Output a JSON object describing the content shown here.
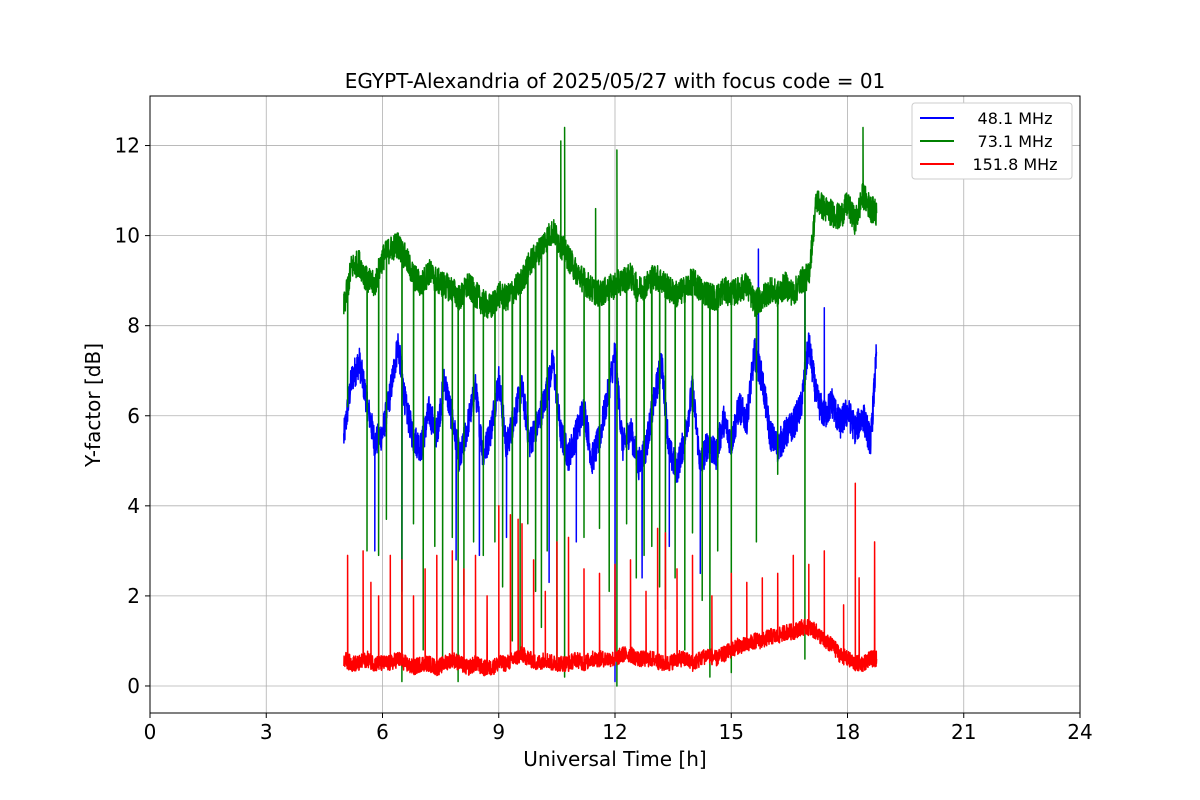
{
  "chart_data": {
    "type": "line",
    "title": "EGYPT-Alexandria of 2025/05/27 with focus code = 01",
    "xlabel": "Universal Time [h]",
    "ylabel": "Y-factor [dB]",
    "xlim": [
      0,
      24
    ],
    "ylim": [
      -0.6,
      13.1
    ],
    "xticks": [
      0,
      3,
      6,
      9,
      12,
      15,
      18,
      21,
      24
    ],
    "yticks": [
      0,
      2,
      4,
      6,
      8,
      10,
      12
    ],
    "grid": true,
    "legend_position": "top-right",
    "series": [
      {
        "name": "48.1 MHz",
        "color": "#0000ff",
        "x": [
          5.0,
          5.2,
          5.4,
          5.6,
          5.8,
          6.0,
          6.2,
          6.4,
          6.6,
          6.8,
          7.0,
          7.2,
          7.4,
          7.6,
          7.8,
          8.0,
          8.2,
          8.4,
          8.6,
          8.8,
          9.0,
          9.2,
          9.4,
          9.6,
          9.8,
          10.0,
          10.2,
          10.4,
          10.6,
          10.8,
          11.0,
          11.2,
          11.4,
          11.6,
          11.8,
          12.0,
          12.2,
          12.4,
          12.6,
          12.8,
          13.0,
          13.2,
          13.4,
          13.6,
          13.8,
          14.0,
          14.2,
          14.4,
          14.6,
          14.8,
          15.0,
          15.2,
          15.4,
          15.6,
          15.8,
          16.0,
          16.2,
          16.4,
          16.6,
          16.8,
          17.0,
          17.2,
          17.4,
          17.6,
          17.8,
          18.0,
          18.2,
          18.4,
          18.6,
          18.75
        ],
        "y": [
          5.5,
          6.8,
          7.2,
          6.3,
          5.4,
          5.6,
          6.5,
          7.6,
          6.2,
          5.5,
          5.3,
          6.1,
          5.6,
          6.8,
          5.9,
          5.0,
          5.8,
          6.6,
          5.1,
          5.7,
          6.8,
          5.3,
          6.0,
          6.6,
          5.4,
          5.8,
          6.4,
          7.2,
          5.6,
          5.1,
          5.6,
          6.2,
          5.0,
          5.5,
          6.4,
          7.4,
          5.3,
          5.7,
          4.9,
          5.3,
          6.3,
          7.2,
          5.2,
          4.8,
          5.5,
          6.6,
          4.9,
          5.4,
          5.1,
          5.9,
          5.4,
          6.2,
          5.9,
          7.4,
          6.8,
          5.6,
          5.3,
          5.6,
          5.8,
          6.2,
          7.6,
          6.4,
          6.0,
          6.3,
          5.8,
          6.1,
          5.7,
          6.0,
          5.4,
          7.4
        ]
      },
      {
        "name": "73.1 MHz",
        "color": "#008000",
        "x": [
          5.0,
          5.2,
          5.4,
          5.6,
          5.8,
          6.0,
          6.2,
          6.4,
          6.6,
          6.8,
          7.0,
          7.2,
          7.4,
          7.6,
          7.8,
          8.0,
          8.2,
          8.4,
          8.6,
          8.8,
          9.0,
          9.2,
          9.4,
          9.6,
          9.8,
          10.0,
          10.2,
          10.4,
          10.6,
          10.8,
          11.0,
          11.2,
          11.4,
          11.6,
          11.8,
          12.0,
          12.2,
          12.4,
          12.6,
          12.8,
          13.0,
          13.2,
          13.4,
          13.6,
          13.8,
          14.0,
          14.2,
          14.4,
          14.6,
          14.8,
          15.0,
          15.2,
          15.4,
          15.6,
          15.8,
          16.0,
          16.2,
          16.4,
          16.6,
          16.8,
          17.0,
          17.2,
          17.4,
          17.6,
          17.8,
          18.0,
          18.2,
          18.4,
          18.6,
          18.75
        ],
        "y": [
          8.4,
          9.3,
          9.4,
          9.0,
          8.9,
          9.5,
          9.7,
          9.8,
          9.5,
          9.1,
          8.9,
          9.2,
          9.0,
          8.9,
          8.8,
          8.6,
          8.9,
          8.7,
          8.5,
          8.4,
          8.7,
          8.6,
          8.8,
          9.0,
          9.4,
          9.6,
          9.9,
          10.1,
          9.8,
          9.5,
          9.2,
          9.0,
          8.8,
          8.7,
          8.8,
          8.9,
          9.0,
          9.1,
          8.8,
          8.9,
          9.1,
          9.0,
          8.8,
          8.7,
          8.8,
          9.0,
          8.8,
          8.7,
          8.6,
          8.8,
          8.7,
          8.8,
          8.9,
          8.5,
          8.6,
          8.8,
          8.7,
          8.9,
          8.7,
          9.0,
          9.1,
          10.8,
          10.6,
          10.5,
          10.4,
          10.7,
          10.3,
          10.9,
          10.6,
          10.5
        ]
      },
      {
        "name": "151.8 MHz",
        "color": "#ff0000",
        "x": [
          5.0,
          5.2,
          5.4,
          5.6,
          5.8,
          6.0,
          6.2,
          6.4,
          6.6,
          6.8,
          7.0,
          7.2,
          7.4,
          7.6,
          7.8,
          8.0,
          8.2,
          8.4,
          8.6,
          8.8,
          9.0,
          9.2,
          9.4,
          9.6,
          9.8,
          10.0,
          10.2,
          10.4,
          10.6,
          10.8,
          11.0,
          11.2,
          11.4,
          11.6,
          11.8,
          12.0,
          12.2,
          12.4,
          12.6,
          12.8,
          13.0,
          13.2,
          13.4,
          13.6,
          13.8,
          14.0,
          14.2,
          14.4,
          14.6,
          14.8,
          15.0,
          15.2,
          15.4,
          15.6,
          15.8,
          16.0,
          16.2,
          16.4,
          16.6,
          16.8,
          17.0,
          17.2,
          17.4,
          17.6,
          17.8,
          18.0,
          18.2,
          18.4,
          18.6,
          18.75
        ],
        "y": [
          0.6,
          0.5,
          0.5,
          0.6,
          0.5,
          0.5,
          0.5,
          0.6,
          0.5,
          0.4,
          0.5,
          0.5,
          0.4,
          0.5,
          0.6,
          0.5,
          0.4,
          0.5,
          0.4,
          0.4,
          0.5,
          0.5,
          0.6,
          0.7,
          0.6,
          0.5,
          0.6,
          0.5,
          0.5,
          0.5,
          0.6,
          0.5,
          0.6,
          0.6,
          0.6,
          0.6,
          0.7,
          0.7,
          0.6,
          0.6,
          0.6,
          0.5,
          0.5,
          0.6,
          0.6,
          0.5,
          0.6,
          0.7,
          0.6,
          0.7,
          0.8,
          0.9,
          0.9,
          1.0,
          1.0,
          1.1,
          1.1,
          1.2,
          1.2,
          1.3,
          1.3,
          1.2,
          1.0,
          0.9,
          0.7,
          0.6,
          0.5,
          0.5,
          0.6,
          0.6
        ]
      }
    ],
    "drops": [
      {
        "series": 1,
        "x": [
          5.1,
          5.3,
          5.6,
          5.9,
          6.1,
          6.3,
          6.5,
          6.8,
          7.05,
          7.35,
          7.55,
          7.8,
          7.95,
          8.1,
          8.35,
          8.6,
          8.9,
          9.1,
          9.35,
          9.55,
          9.75,
          9.95,
          10.1,
          10.25,
          10.5,
          10.7,
          11.2,
          11.6,
          11.85,
          12.05,
          12.3,
          12.55,
          12.75,
          12.95,
          13.15,
          13.3,
          13.55,
          13.8,
          14.0,
          14.25,
          14.45,
          14.65,
          15.0,
          15.65,
          16.2,
          16.9
        ],
        "y": [
          6.2,
          4.8,
          3.0,
          2.9,
          3.7,
          2.7,
          0.1,
          3.6,
          0.8,
          3.1,
          0.6,
          3.3,
          0.1,
          2.0,
          3.2,
          2.9,
          3.2,
          2.2,
          1.0,
          0.7,
          3.6,
          2.1,
          1.3,
          3.0,
          0.4,
          0.2,
          3.3,
          3.5,
          2.1,
          0.0,
          3.6,
          2.4,
          2.9,
          3.1,
          2.2,
          1.7,
          2.4,
          0.8,
          3.4,
          1.9,
          0.2,
          3.0,
          0.3,
          3.2,
          4.7,
          0.6
        ]
      },
      {
        "series": 0,
        "x": [
          5.8,
          6.5,
          7.3,
          7.9,
          8.5,
          9.2,
          10.3,
          11.0,
          12.0,
          12.7,
          13.4,
          14.2
        ],
        "y": [
          3.0,
          2.1,
          3.2,
          2.8,
          2.9,
          3.3,
          2.3,
          3.2,
          0.1,
          2.4,
          3.1,
          2.5
        ]
      }
    ],
    "spikes": [
      {
        "series": 1,
        "x": [
          6.3,
          10.6,
          10.7,
          12.05,
          11.5,
          18.4
        ],
        "y": [
          10.3,
          12.1,
          12.4,
          11.9,
          10.6,
          12.4
        ]
      },
      {
        "series": 0,
        "x": [
          6.3,
          15.7,
          16.9,
          17.4,
          18.75
        ],
        "y": [
          8.2,
          9.7,
          9.2,
          8.4,
          8.3
        ]
      },
      {
        "series": 2,
        "x": [
          5.1,
          5.3,
          5.5,
          5.7,
          5.9,
          6.2,
          6.5,
          6.8,
          7.1,
          7.4,
          7.8,
          8.1,
          8.4,
          8.7,
          9.0,
          9.3,
          9.5,
          9.6,
          9.9,
          10.2,
          10.5,
          10.8,
          11.2,
          11.6,
          12.0,
          12.4,
          12.8,
          13.1,
          13.3,
          13.6,
          14.0,
          14.5,
          15.0,
          15.4,
          15.8,
          16.2,
          16.6,
          17.0,
          17.4,
          17.9,
          18.2,
          18.3,
          18.7
        ],
        "y": [
          2.9,
          2.7,
          3.0,
          2.3,
          2.0,
          2.9,
          2.8,
          2.0,
          2.6,
          2.9,
          3.0,
          2.6,
          2.9,
          2.0,
          4.0,
          3.8,
          3.7,
          3.6,
          2.8,
          2.1,
          3.2,
          3.3,
          2.6,
          2.5,
          2.7,
          2.8,
          2.1,
          3.5,
          3.4,
          2.6,
          2.9,
          2.0,
          2.5,
          2.3,
          2.4,
          2.5,
          2.9,
          2.7,
          3.0,
          1.8,
          4.5,
          2.4,
          3.2
        ]
      }
    ]
  }
}
